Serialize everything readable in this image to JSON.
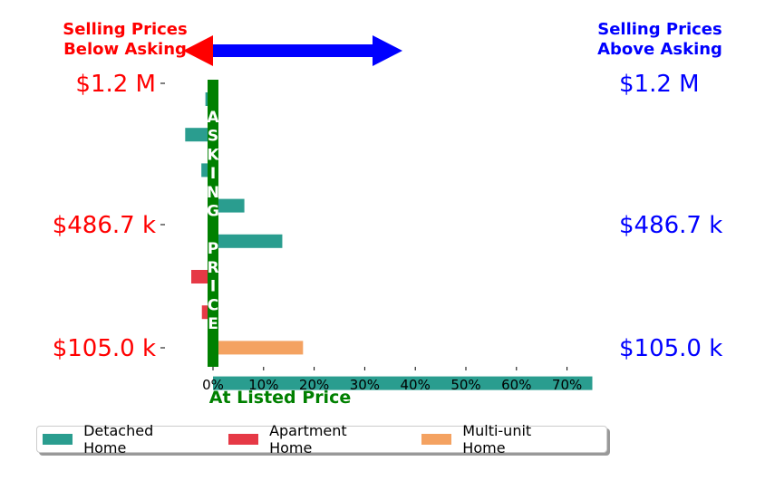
{
  "chart_data": {
    "type": "bar",
    "orientation": "horizontal",
    "left_title": "Selling Prices\nBelow Asking",
    "right_title": "Selling Prices\nAbove Asking",
    "center_label": "ASKING PRICE",
    "xlabel": "At Listed Price",
    "x_ticks": [
      "0%",
      "10%",
      "20%",
      "30%",
      "40%",
      "50%",
      "60%",
      "70%"
    ],
    "x_tick_values": [
      0,
      10,
      20,
      30,
      40,
      50,
      60,
      70
    ],
    "xlim": [
      -5,
      75
    ],
    "y_tick_labels": [
      "$1.2 M",
      "$486.7 k",
      "$105.0 k"
    ],
    "y_tick_positions": [
      1200000,
      486700,
      105000
    ],
    "series": [
      {
        "name": "Detached Home",
        "color": "#2a9d8f"
      },
      {
        "name": "Apartment Home",
        "color": "#e63946"
      },
      {
        "name": "Multi-unit Home",
        "color": "#f4a261"
      }
    ],
    "bars": [
      {
        "series": "Detached Home",
        "row": 0,
        "value": -1.5
      },
      {
        "series": "Detached Home",
        "row": 1,
        "value": -5.5
      },
      {
        "series": "Detached Home",
        "row": 2,
        "value": -2.3
      },
      {
        "series": "Detached Home",
        "row": 3,
        "value": 6.2
      },
      {
        "series": "Detached Home",
        "row": 4,
        "value": 13.7
      },
      {
        "series": "Apartment Home",
        "row": 5,
        "value": -4.3
      },
      {
        "series": "Apartment Home",
        "row": 6,
        "value": -2.2
      },
      {
        "series": "Multi-unit Home",
        "row": 7,
        "value": 17.8
      },
      {
        "series": "Detached Home",
        "row": 8,
        "value": 75.0
      }
    ],
    "arrow_colors": {
      "left": "#ff0000",
      "right": "#0000ff"
    },
    "center_bar_color": "#008000"
  }
}
